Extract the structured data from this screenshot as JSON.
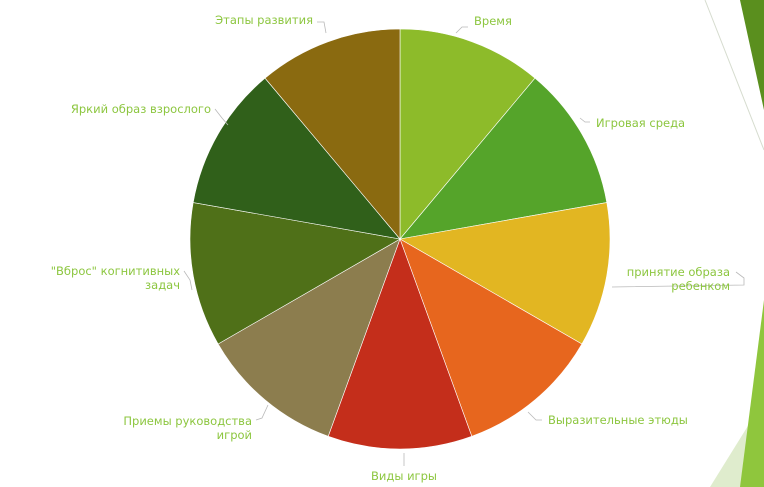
{
  "chart_data": {
    "type": "pie",
    "title": "",
    "categories": [
      "Время",
      "Игровая среда",
      "принятие образа ребенком",
      "Выразительные этюды",
      "Виды игры",
      "Приемы руководства игрой",
      "\"Вброс\" когнитивных задач",
      "Яркий образ взрослого",
      "Этапы развития"
    ],
    "values": [
      1,
      1,
      1,
      1,
      1,
      1,
      1,
      1,
      1
    ],
    "colors": [
      "#8dbb2a",
      "#55a42a",
      "#e2b622",
      "#e7661e",
      "#c42e1b",
      "#8c7d4e",
      "#4f7018",
      "#30601a",
      "#8a6a10"
    ],
    "label_lines": [
      [
        "Время"
      ],
      [
        "Игровая среда"
      ],
      [
        "принятие образа",
        "ребенком"
      ],
      [
        "Выразительные этюды"
      ],
      [
        "Виды игры"
      ],
      [
        "Приемы руководства",
        "игрой"
      ],
      [
        "\"Вброс\" когнитивных",
        "задач"
      ],
      [
        "Яркий образ взрослого"
      ],
      [
        "Этапы развития"
      ]
    ],
    "label_color": "#8cc63f",
    "legend": "none",
    "start": "top, clockwise"
  },
  "decor": {
    "accent_colors": [
      "#5a8f1e",
      "#8fc63d",
      "#dfeccd"
    ]
  }
}
